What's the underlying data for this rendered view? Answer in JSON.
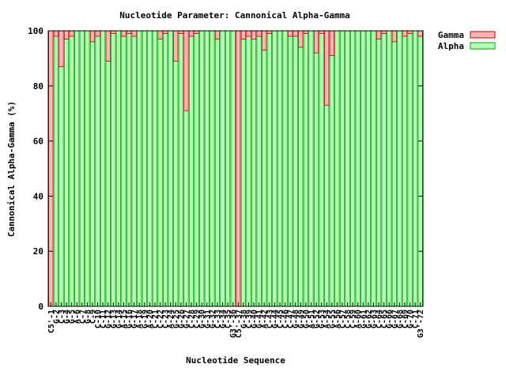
{
  "chart_data": {
    "type": "bar",
    "stacked": true,
    "title": "Nucleotide Parameter: Cannonical Alpha-Gamma",
    "xlabel": "Nucleotide Sequence",
    "ylabel": "Cannonical Alpha-Gamma (%)",
    "ylim": [
      0,
      100
    ],
    "yticks": [
      0,
      20,
      40,
      60,
      80,
      100
    ],
    "grid": false,
    "legend_position": "right",
    "categories": [
      "C5'-1",
      "G-2",
      "C-3",
      "G-4",
      "G-5",
      "A-6",
      "C-7",
      "G-8",
      "C-9",
      "C-10",
      "C-11",
      "G-12",
      "G-13",
      "G-14",
      "A-15",
      "G-16",
      "G-17",
      "A-18",
      "G-19",
      "A-20",
      "C-21",
      "C-22",
      "C-23",
      "A-24",
      "G-25",
      "G-26",
      "G-27",
      "C-28",
      "C-29",
      "G-30",
      "G-31",
      "G-32",
      "C-33",
      "G-34",
      "C-35",
      "G3'-36",
      "C5'-37",
      "G-38",
      "C-39",
      "G-40",
      "G-41",
      "A-42",
      "C-43",
      "G-44",
      "C-45",
      "C-46",
      "C-47",
      "G-48",
      "G-49",
      "G-50",
      "A-51",
      "G-52",
      "G-53",
      "A-54",
      "G-55",
      "A-56",
      "C-57",
      "C-58",
      "C-59",
      "A-60",
      "G-61",
      "G-62",
      "G-63",
      "C-64",
      "C-65",
      "G-66",
      "G-67",
      "G-68",
      "C-69",
      "G-70",
      "C-71",
      "G3'-72"
    ],
    "series": [
      {
        "name": "Gamma",
        "color": "#ffb6b6",
        "values": [
          100,
          2,
          13,
          3,
          2,
          0,
          0,
          0,
          4,
          2,
          0,
          11,
          1,
          0,
          2,
          1,
          2,
          0,
          0,
          0,
          0,
          3,
          1,
          0,
          11,
          1,
          29,
          2,
          1,
          0,
          0,
          0,
          3,
          0,
          0,
          0,
          100,
          3,
          2,
          3,
          2,
          7,
          1,
          0,
          0,
          0,
          2,
          2,
          6,
          1,
          0,
          8,
          1,
          27,
          9,
          0,
          0,
          0,
          0,
          0,
          0,
          0,
          0,
          3,
          1,
          0,
          4,
          0,
          2,
          1,
          0,
          2
        ]
      },
      {
        "name": "Alpha",
        "color": "#b6ffb6",
        "values": [
          0,
          98,
          87,
          97,
          98,
          100,
          100,
          100,
          96,
          98,
          100,
          89,
          99,
          100,
          98,
          99,
          98,
          100,
          100,
          100,
          100,
          97,
          99,
          100,
          89,
          99,
          71,
          98,
          99,
          100,
          100,
          100,
          97,
          100,
          100,
          100,
          0,
          97,
          98,
          97,
          98,
          93,
          99,
          100,
          100,
          100,
          98,
          98,
          94,
          99,
          100,
          92,
          99,
          73,
          91,
          100,
          100,
          100,
          100,
          100,
          100,
          100,
          100,
          97,
          99,
          100,
          96,
          100,
          98,
          99,
          100,
          98
        ]
      }
    ]
  }
}
